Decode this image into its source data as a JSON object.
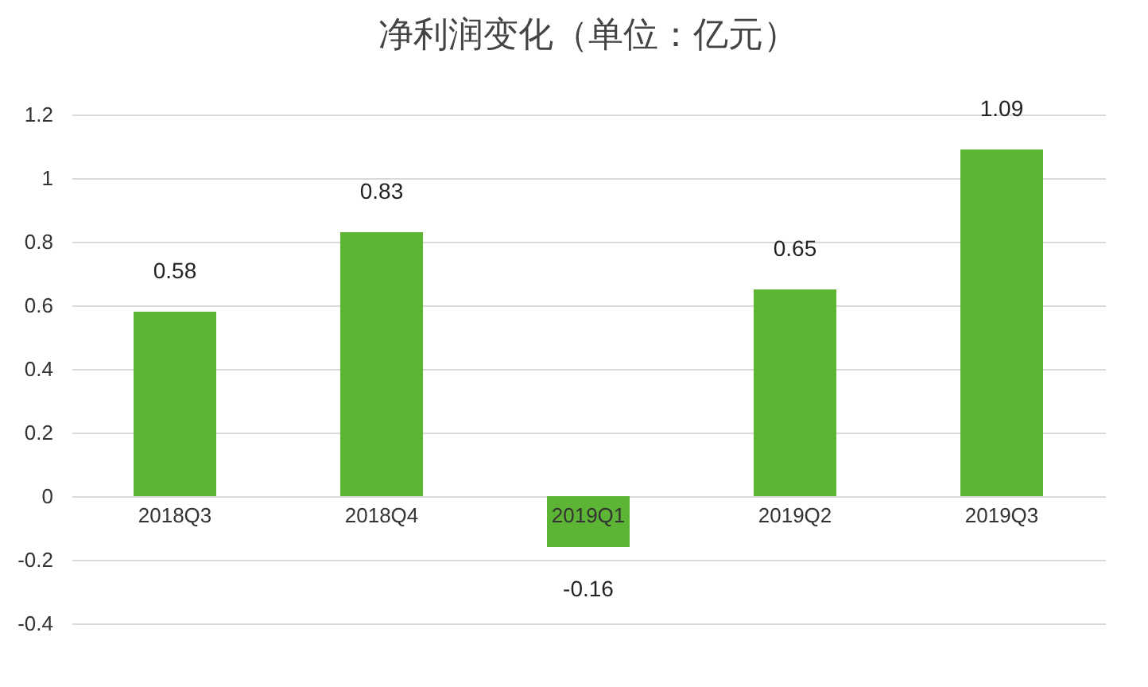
{
  "chart_data": {
    "type": "bar",
    "title": "净利润变化（单位：亿元）",
    "categories": [
      "2018Q3",
      "2018Q4",
      "2019Q1",
      "2019Q2",
      "2019Q3"
    ],
    "values": [
      0.58,
      0.83,
      -0.16,
      0.65,
      1.09
    ],
    "color": "#5db535",
    "ylim": [
      -0.4,
      1.2
    ],
    "yticks": [
      -0.4,
      -0.2,
      0,
      0.2,
      0.4,
      0.6,
      0.8,
      1,
      1.2
    ],
    "grid": "y",
    "data_labels": true
  }
}
